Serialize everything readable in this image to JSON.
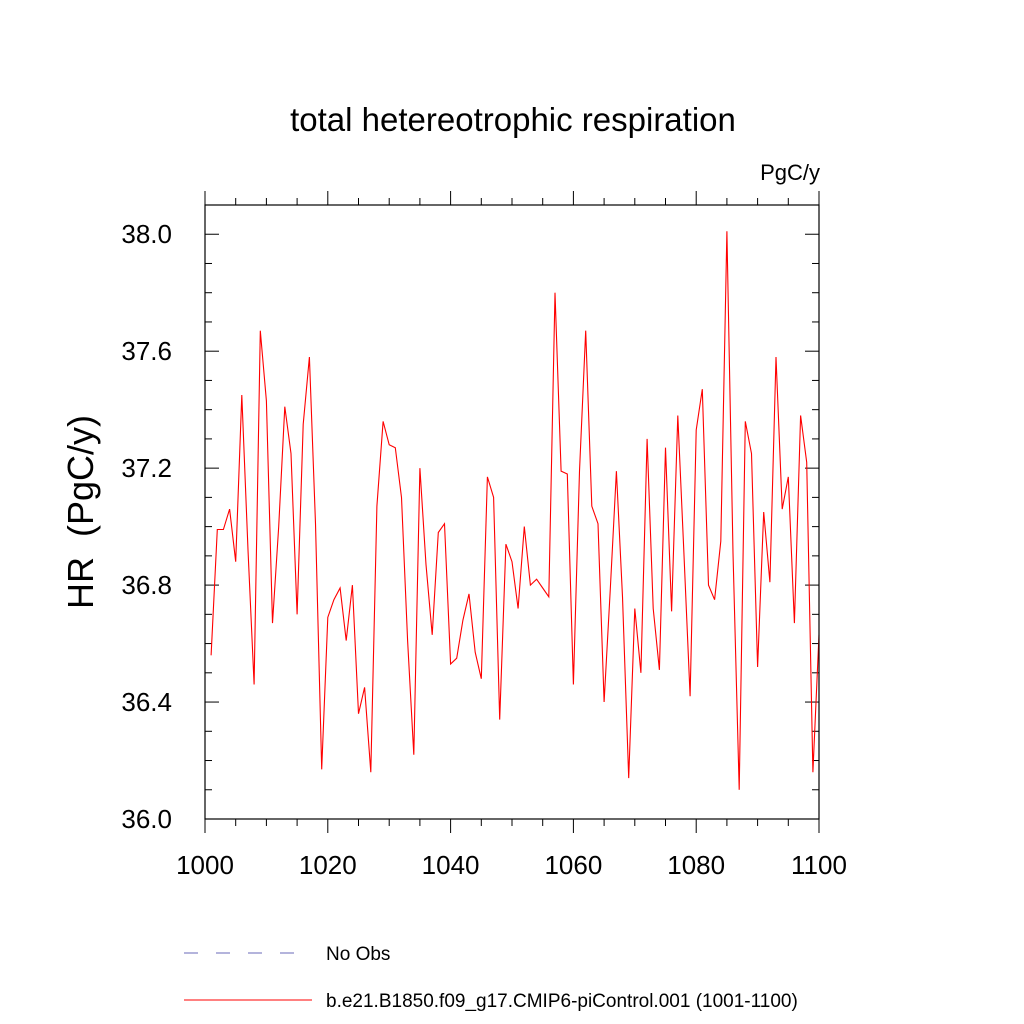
{
  "chart_data": {
    "type": "line",
    "title": "total hetereotrophic respiration",
    "units_label": "PgC/y",
    "xlabel": "",
    "ylabel": "HR  (PgC/y)",
    "xlim": [
      1000,
      1100
    ],
    "ylim": [
      36.0,
      38.1
    ],
    "x_ticks": [
      1000,
      1020,
      1040,
      1060,
      1080,
      1100
    ],
    "x_tick_labels": [
      "1000",
      "1020",
      "1040",
      "1060",
      "1080",
      "1100"
    ],
    "y_ticks": [
      36.0,
      36.4,
      36.8,
      37.2,
      37.6,
      38.0
    ],
    "y_tick_labels": [
      "36.0",
      "36.4",
      "36.8",
      "37.2",
      "37.6",
      "38.0"
    ],
    "grid": false,
    "legend_position": "bottom",
    "series": [
      {
        "name": "No Obs",
        "color": "#6a6ab8",
        "style": "dashed",
        "x": [],
        "values": []
      },
      {
        "name": "b.e21.B1850.f09_g17.CMIP6-piControl.001 (1001-1100)",
        "color": "#ff0000",
        "style": "solid",
        "x": [
          1001,
          1002,
          1003,
          1004,
          1005,
          1006,
          1007,
          1008,
          1009,
          1010,
          1011,
          1012,
          1013,
          1014,
          1015,
          1016,
          1017,
          1018,
          1019,
          1020,
          1021,
          1022,
          1023,
          1024,
          1025,
          1026,
          1027,
          1028,
          1029,
          1030,
          1031,
          1032,
          1033,
          1034,
          1035,
          1036,
          1037,
          1038,
          1039,
          1040,
          1041,
          1042,
          1043,
          1044,
          1045,
          1046,
          1047,
          1048,
          1049,
          1050,
          1051,
          1052,
          1053,
          1054,
          1055,
          1056,
          1057,
          1058,
          1059,
          1060,
          1061,
          1062,
          1063,
          1064,
          1065,
          1066,
          1067,
          1068,
          1069,
          1070,
          1071,
          1072,
          1073,
          1074,
          1075,
          1076,
          1077,
          1078,
          1079,
          1080,
          1081,
          1082,
          1083,
          1084,
          1085,
          1086,
          1087,
          1088,
          1089,
          1090,
          1091,
          1092,
          1093,
          1094,
          1095,
          1096,
          1097,
          1098,
          1099,
          1100
        ],
        "values": [
          36.56,
          36.99,
          36.99,
          37.06,
          36.88,
          37.45,
          36.92,
          36.46,
          37.67,
          37.43,
          36.67,
          37.0,
          37.41,
          37.25,
          36.7,
          37.35,
          37.58,
          37.01,
          36.17,
          36.69,
          36.75,
          36.79,
          36.61,
          36.8,
          36.36,
          36.45,
          36.16,
          37.07,
          37.36,
          37.28,
          37.27,
          37.1,
          36.61,
          36.22,
          37.2,
          36.87,
          36.63,
          36.98,
          37.01,
          36.53,
          36.55,
          36.68,
          36.77,
          36.57,
          36.48,
          37.17,
          37.1,
          36.34,
          36.94,
          36.88,
          36.72,
          37.0,
          36.8,
          36.82,
          36.79,
          36.76,
          37.8,
          37.19,
          37.18,
          36.46,
          37.19,
          37.67,
          37.07,
          37.01,
          36.4,
          36.78,
          37.19,
          36.76,
          36.14,
          36.72,
          36.5,
          37.3,
          36.72,
          36.51,
          37.27,
          36.71,
          37.38,
          36.91,
          36.42,
          37.33,
          37.47,
          36.8,
          36.75,
          36.95,
          38.01,
          36.91,
          36.1,
          37.36,
          37.25,
          36.52,
          37.05,
          36.81,
          37.58,
          37.06,
          37.17,
          36.67,
          37.38,
          37.22,
          36.16,
          36.63
        ]
      }
    ]
  }
}
